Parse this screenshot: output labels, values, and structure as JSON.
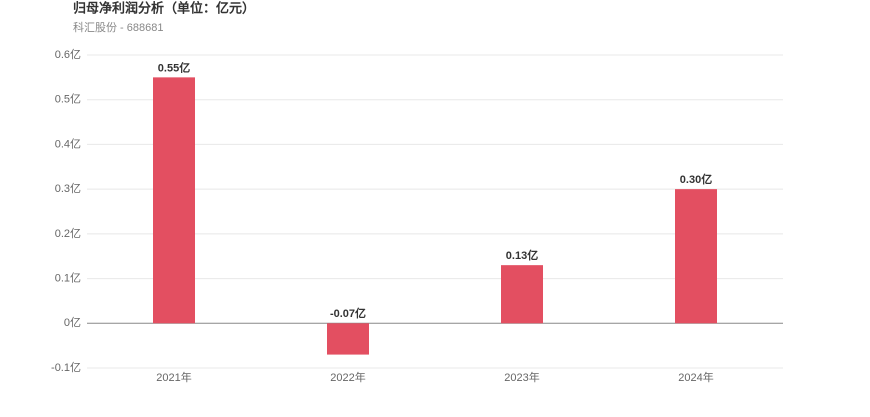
{
  "chart_data": {
    "type": "bar",
    "title": "归母净利润分析（单位：亿元）",
    "subtitle": "科汇股份 - 688681",
    "categories": [
      "2021年",
      "2022年",
      "2023年",
      "2024年"
    ],
    "values": [
      0.55,
      -0.07,
      0.13,
      0.3
    ],
    "value_labels": [
      "0.55亿",
      "-0.07亿",
      "0.13亿",
      "0.30亿"
    ],
    "color": "#e34f61",
    "ylim": [
      -0.1,
      0.6
    ],
    "yticks": [
      {
        "value": -0.1,
        "label": "-0.1亿"
      },
      {
        "value": 0,
        "label": "0亿"
      },
      {
        "value": 0.1,
        "label": "0.1亿"
      },
      {
        "value": 0.2,
        "label": "0.2亿"
      },
      {
        "value": 0.3,
        "label": "0.3亿"
      },
      {
        "value": 0.4,
        "label": "0.4亿"
      },
      {
        "value": 0.5,
        "label": "0.5亿"
      },
      {
        "value": 0.6,
        "label": "0.6亿"
      }
    ],
    "grid": true
  }
}
